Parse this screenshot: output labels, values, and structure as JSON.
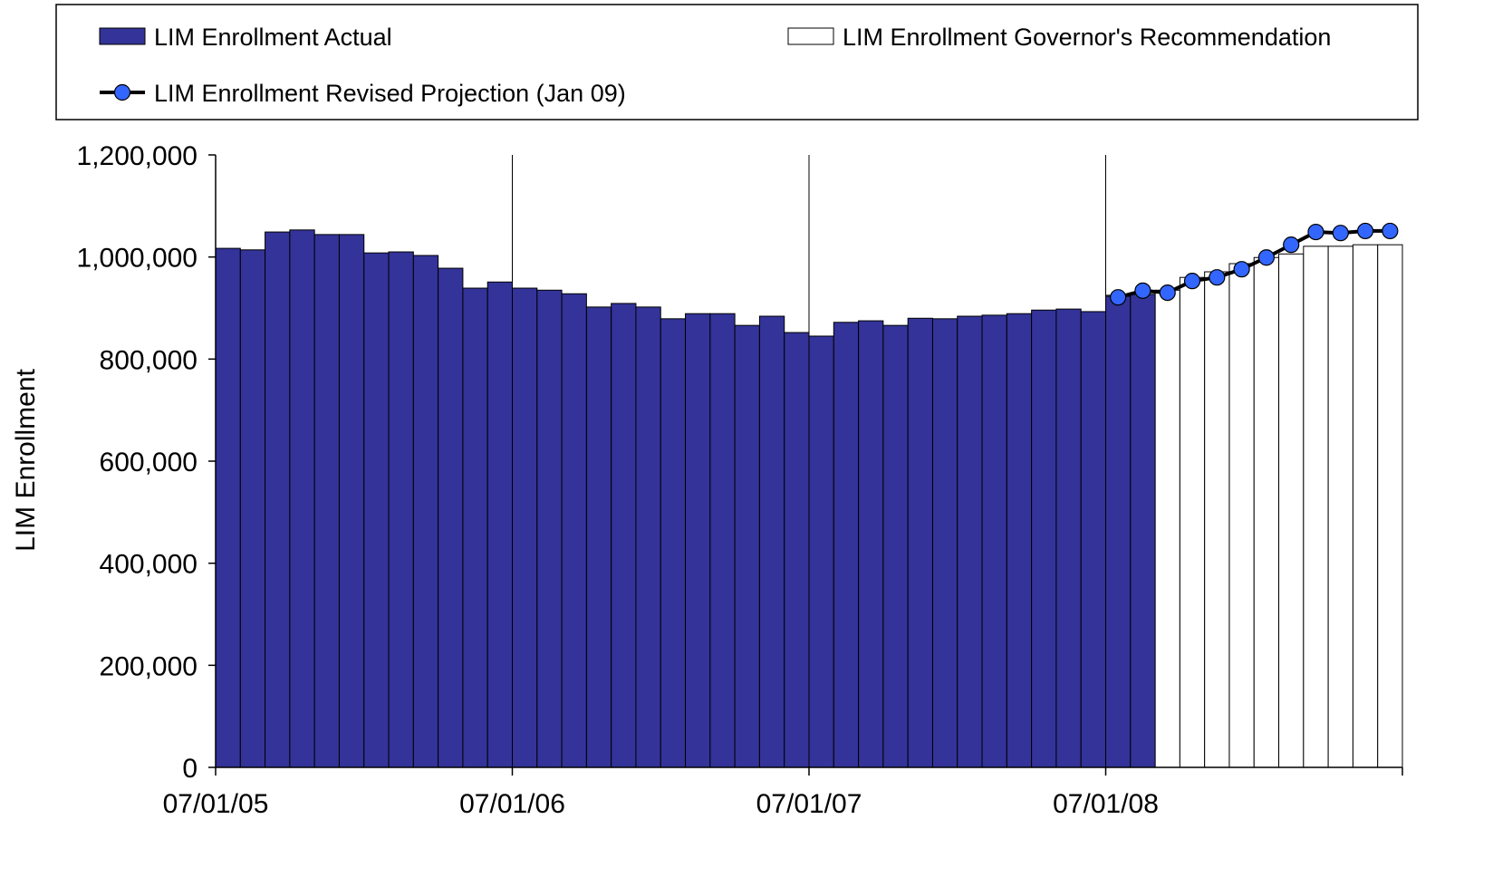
{
  "chart_data": {
    "type": "bar",
    "y_label": "LIM Enrollment",
    "categories": [
      "07/01/05",
      null,
      null,
      null,
      null,
      null,
      null,
      null,
      null,
      null,
      null,
      null,
      "07/01/06",
      null,
      null,
      null,
      null,
      null,
      null,
      null,
      null,
      null,
      null,
      null,
      "07/01/07",
      null,
      null,
      null,
      null,
      null,
      null,
      null,
      null,
      null,
      null,
      null,
      "07/01/08",
      null,
      null,
      null,
      null,
      null,
      null,
      null,
      null,
      null,
      null,
      null
    ],
    "series": [
      {
        "name": "LIM Enrollment Governor's Recommendation",
        "kind": "bar",
        "color": "#ffffff",
        "values": [
          null,
          null,
          null,
          null,
          null,
          null,
          null,
          null,
          null,
          null,
          null,
          null,
          null,
          null,
          null,
          null,
          null,
          null,
          null,
          null,
          null,
          null,
          null,
          null,
          null,
          null,
          null,
          null,
          null,
          null,
          null,
          null,
          null,
          null,
          null,
          null,
          925000,
          930000,
          935000,
          960000,
          971000,
          987000,
          999000,
          1006000,
          1021000,
          1021000,
          1024000,
          1024000
        ]
      },
      {
        "name": "LIM Enrollment Actual",
        "kind": "bar",
        "color": "#333399",
        "values": [
          1017000,
          1014000,
          1049000,
          1053000,
          1044000,
          1044000,
          1008000,
          1010000,
          1003000,
          978000,
          939000,
          951000,
          939000,
          935000,
          928000,
          902000,
          909000,
          902000,
          879000,
          889000,
          889000,
          866000,
          884000,
          852000,
          845000,
          872000,
          875000,
          866000,
          880000,
          879000,
          884000,
          886000,
          889000,
          896000,
          898000,
          893000,
          923000,
          927000,
          null,
          null,
          null,
          null,
          null,
          null,
          null,
          null,
          null,
          null
        ]
      },
      {
        "name": "LIM Enrollment Revised Projection (Jan 09)",
        "kind": "line",
        "color": "#3366ff",
        "values": [
          null,
          null,
          null,
          null,
          null,
          null,
          null,
          null,
          null,
          null,
          null,
          null,
          null,
          null,
          null,
          null,
          null,
          null,
          null,
          null,
          null,
          null,
          null,
          null,
          null,
          null,
          null,
          null,
          null,
          null,
          null,
          null,
          null,
          null,
          null,
          null,
          921000,
          934000,
          930000,
          953000,
          960000,
          976000,
          999000,
          1024000,
          1049000,
          1047000,
          1051000,
          1051000
        ]
      }
    ],
    "ylim": [
      0,
      1200000
    ],
    "yticks": [
      0,
      {
        "value": 200000,
        "label": "200,000"
      },
      {
        "value": 400000,
        "label": "400,000"
      },
      {
        "value": 600000,
        "label": "600,000"
      },
      {
        "value": 800000,
        "label": "800,000"
      },
      {
        "value": 1000000,
        "label": "1,000,000"
      },
      {
        "value": 1200000,
        "label": "1,200,000"
      }
    ],
    "x_grid": true
  }
}
